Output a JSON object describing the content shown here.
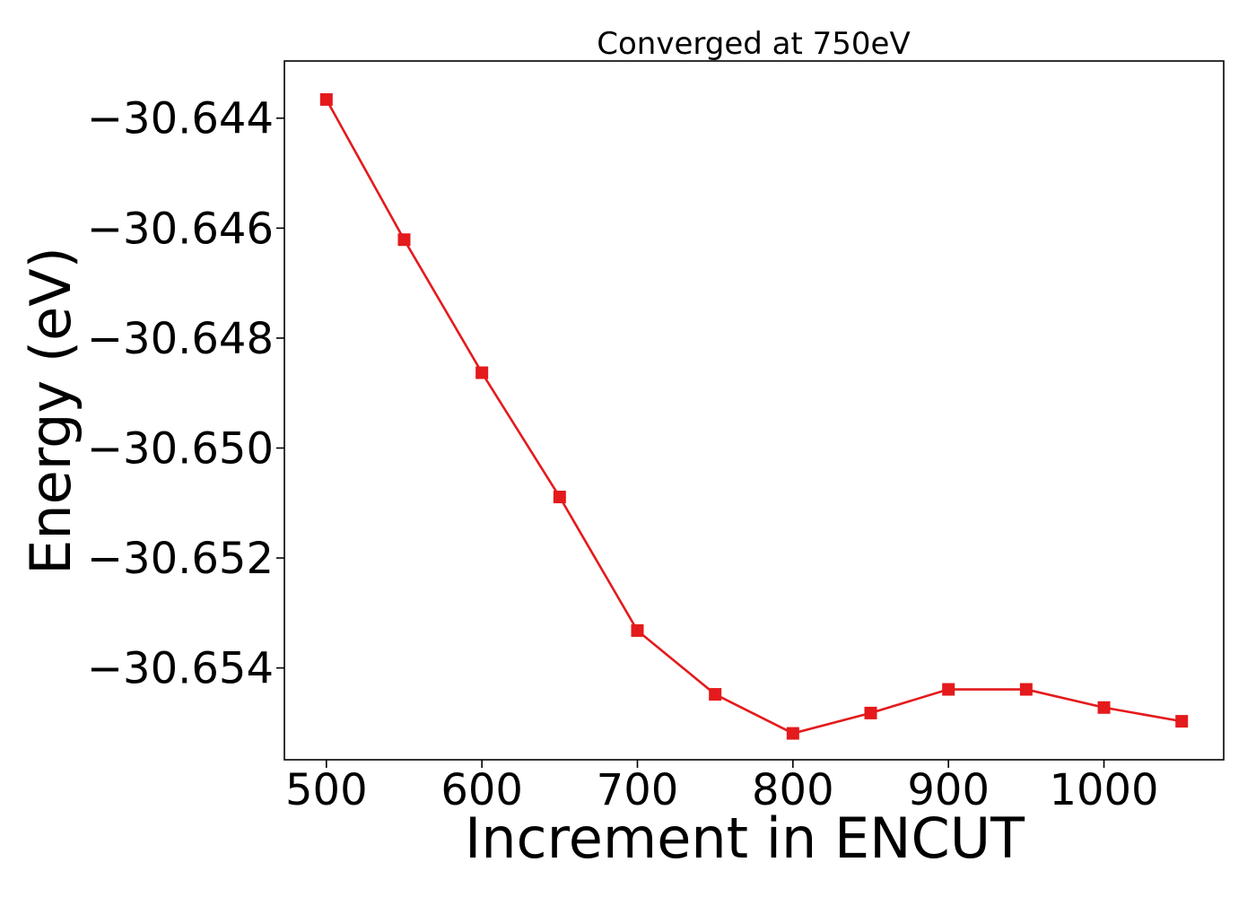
{
  "chart_data": {
    "type": "line",
    "title": "Converged at 750eV",
    "xlabel": "Increment in ENCUT",
    "ylabel": "Energy (eV)",
    "xlim": [
      473,
      1077
    ],
    "ylim": [
      -30.65567,
      -30.64296
    ],
    "x_ticks": [
      500,
      600,
      700,
      800,
      900,
      1000
    ],
    "x_tick_labels": [
      "500",
      "600",
      "700",
      "800",
      "900",
      "1000"
    ],
    "y_ticks": [
      -30.644,
      -30.646,
      -30.648,
      -30.65,
      -30.652,
      -30.654
    ],
    "y_tick_labels": [
      "−30.644",
      "−30.646",
      "−30.648",
      "−30.650",
      "−30.652",
      "−30.654"
    ],
    "grid": false,
    "legend": "none",
    "series": [
      {
        "color": "#e41a1c",
        "marker": "square",
        "x": [
          500,
          550,
          600,
          650,
          700,
          750,
          800,
          850,
          900,
          950,
          1000,
          1050
        ],
        "y": [
          -30.64366,
          -30.64621,
          -30.64863,
          -30.65089,
          -30.65332,
          -30.65448,
          -30.65519,
          -30.65482,
          -30.65439,
          -30.65439,
          -30.65472,
          -30.65497
        ]
      }
    ]
  }
}
